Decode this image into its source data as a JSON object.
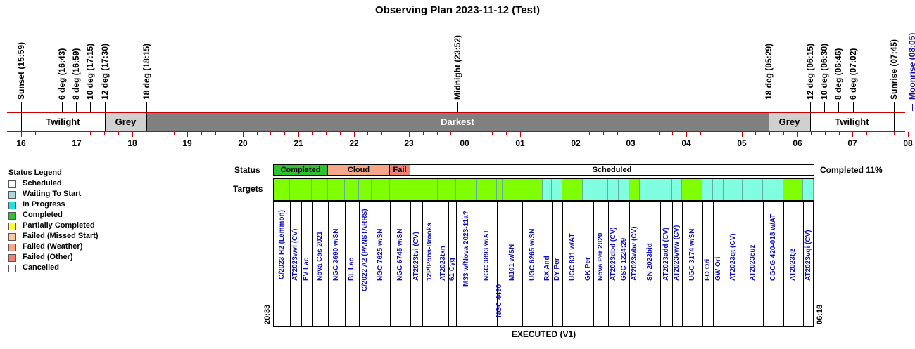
{
  "title": "Observing Plan 2023-11-12 (Test)",
  "events": [
    {
      "label": "Sunset (15:59)",
      "x": 30,
      "color": "black"
    },
    {
      "label": "6 deg (16:43)",
      "x": 88,
      "color": "black"
    },
    {
      "label": "8 deg (16:59)",
      "x": 108,
      "color": "black"
    },
    {
      "label": "10 deg (17:15)",
      "x": 128,
      "color": "black"
    },
    {
      "label": "12 deg (17:30)",
      "x": 149,
      "color": "black"
    },
    {
      "label": "18 deg (18:15)",
      "x": 208,
      "color": "black"
    },
    {
      "label": "Midnight (23:52)",
      "x": 650,
      "color": "black"
    },
    {
      "label": "18 deg (05:29)",
      "x": 1092,
      "color": "black"
    },
    {
      "label": "12 deg (06:15)",
      "x": 1151,
      "color": "black"
    },
    {
      "label": "10 deg (06:30)",
      "x": 1171,
      "color": "black"
    },
    {
      "label": "8 deg (06:46)",
      "x": 1191,
      "color": "black"
    },
    {
      "label": "6 deg (07:02)",
      "x": 1212,
      "color": "black"
    },
    {
      "label": "Sunrise (07:45)",
      "x": 1270,
      "color": "black"
    },
    {
      "label": "Moonrise (08:05)",
      "x": 1296,
      "color": "blue"
    }
  ],
  "bands": [
    {
      "label": "Twilight",
      "from": 30,
      "to": 149,
      "bg": "#ffffff"
    },
    {
      "label": "Grey",
      "from": 149,
      "to": 208,
      "bg": "#d0d0d0"
    },
    {
      "label": "Darkest",
      "from": 208,
      "to": 1092,
      "bg": "#808080",
      "fg": "#ffffff"
    },
    {
      "label": "Grey",
      "from": 1092,
      "to": 1151,
      "bg": "#d0d0d0"
    },
    {
      "label": "Twilight",
      "from": 1151,
      "to": 1270,
      "bg": "#ffffff"
    }
  ],
  "hours": [
    "16",
    "17",
    "18",
    "19",
    "20",
    "21",
    "22",
    "23",
    "00",
    "01",
    "02",
    "03",
    "04",
    "05",
    "06",
    "07",
    "08"
  ],
  "legend": {
    "title": "Status Legend",
    "items": [
      {
        "label": "Scheduled",
        "color": "#ffffff"
      },
      {
        "label": "Waiting To Start",
        "color": "#a8d8e0"
      },
      {
        "label": "In Progress",
        "color": "#20e0e0"
      },
      {
        "label": "Completed",
        "color": "#30c030"
      },
      {
        "label": "Partially Completed",
        "color": "#ffff20"
      },
      {
        "label": "Failed (Missed Start)",
        "color": "#ffc898"
      },
      {
        "label": "Failed (Weather)",
        "color": "#f4a888"
      },
      {
        "label": "Failed (Other)",
        "color": "#f08070"
      },
      {
        "label": "Cancelled",
        "color": "#ffffff"
      }
    ]
  },
  "row_labels": {
    "status": "Status",
    "targets": "Targets"
  },
  "status_segments": [
    {
      "label": "Completed",
      "from": 389,
      "to": 466,
      "bg": "#30c030"
    },
    {
      "label": "Cloud",
      "from": 466,
      "to": 554,
      "bg": "#f4a888"
    },
    {
      "label": "Fail",
      "from": 554,
      "to": 583,
      "bg": "#f08070"
    },
    {
      "label": "Scheduled",
      "from": 583,
      "to": 1156,
      "bg": "#ffffff"
    }
  ],
  "completed_pct": "Completed 11%",
  "targets": [
    {
      "name": "C/2023 H2 (Lemmon)",
      "from": 389,
      "to": 412,
      "state": "done"
    },
    {
      "name": "AT2023wvl (CV)",
      "from": 412,
      "to": 428,
      "state": "done"
    },
    {
      "name": "EV Lac",
      "from": 428,
      "to": 443,
      "state": "done"
    },
    {
      "name": "Nova Cas 2021",
      "from": 443,
      "to": 466,
      "state": "done"
    },
    {
      "name": "NGC 3690 w/SN",
      "from": 466,
      "to": 490,
      "state": "done"
    },
    {
      "name": "BL Lac",
      "from": 490,
      "to": 510,
      "state": "done"
    },
    {
      "name": "C/2022 A2 (PANSTARRS)",
      "from": 510,
      "to": 528,
      "state": "done"
    },
    {
      "name": "NGC 7625 w/SN",
      "from": 528,
      "to": 554,
      "state": "done"
    },
    {
      "name": "NGC 6745 w/SN",
      "from": 554,
      "to": 583,
      "state": "done"
    },
    {
      "name": "AT2023tvi (CV)",
      "from": 583,
      "to": 600,
      "state": "done"
    },
    {
      "name": "12P/Pons-Brooks",
      "from": 600,
      "to": 622,
      "state": "done"
    },
    {
      "name": "AT2023txn",
      "from": 622,
      "to": 637,
      "state": "done"
    },
    {
      "name": "61 Cyg",
      "from": 637,
      "to": 648,
      "state": "done"
    },
    {
      "name": "M33 w/Nova 2023-11a?",
      "from": 648,
      "to": 677,
      "state": "done"
    },
    {
      "name": "NGC 3893 w/AT",
      "from": 677,
      "to": 706,
      "state": "done"
    },
    {
      "name": "NGC 4490",
      "from": 706,
      "to": 714,
      "state": "done"
    },
    {
      "name": "M101 w/SN",
      "from": 714,
      "to": 742,
      "state": "done"
    },
    {
      "name": "UGC 6265 w/SN",
      "from": 742,
      "to": 771,
      "state": "done"
    },
    {
      "name": "RX And",
      "from": 771,
      "to": 784,
      "state": "sched"
    },
    {
      "name": "DY Per",
      "from": 784,
      "to": 799,
      "state": "sched"
    },
    {
      "name": "UGC 831 w/AT",
      "from": 799,
      "to": 828,
      "state": "done"
    },
    {
      "name": "GK Per",
      "from": 828,
      "to": 843,
      "state": "sched"
    },
    {
      "name": "Nova Per 2020",
      "from": 843,
      "to": 864,
      "state": "sched"
    },
    {
      "name": "AT2023dbd (CV)",
      "from": 864,
      "to": 879,
      "state": "sched"
    },
    {
      "name": "GSC 1224:29",
      "from": 879,
      "to": 894,
      "state": "sched"
    },
    {
      "name": "AT2023wbv (CV)",
      "from": 894,
      "to": 909,
      "state": "done"
    },
    {
      "name": "SN 2023bid",
      "from": 909,
      "to": 938,
      "state": "sched"
    },
    {
      "name": "AT2023add (CV)",
      "from": 938,
      "to": 955,
      "state": "sched"
    },
    {
      "name": "AT2023vww (CV)",
      "from": 955,
      "to": 969,
      "state": "sched"
    },
    {
      "name": "UGC 3174 w/SN",
      "from": 969,
      "to": 998,
      "state": "done"
    },
    {
      "name": "FO Ori",
      "from": 998,
      "to": 1013,
      "state": "sched"
    },
    {
      "name": "GW Ori",
      "from": 1013,
      "to": 1028,
      "state": "sched"
    },
    {
      "name": "AT2023qt (CV)",
      "from": 1028,
      "to": 1055,
      "state": "sched"
    },
    {
      "name": "AT2023cuz",
      "from": 1055,
      "to": 1084,
      "state": "sched"
    },
    {
      "name": "CGCG 420-018 w/AT",
      "from": 1084,
      "to": 1113,
      "state": "sched"
    },
    {
      "name": "AT2023tjz",
      "from": 1113,
      "to": 1141,
      "state": "done"
    },
    {
      "name": "AT2023vqi (CV)",
      "from": 1141,
      "to": 1156,
      "state": "sched"
    }
  ],
  "start_time": "20:33",
  "end_time": "06:18",
  "footer": "EXECUTED (V1)",
  "colors": {
    "done": "#80ff00",
    "sched": "#80ffe0"
  }
}
